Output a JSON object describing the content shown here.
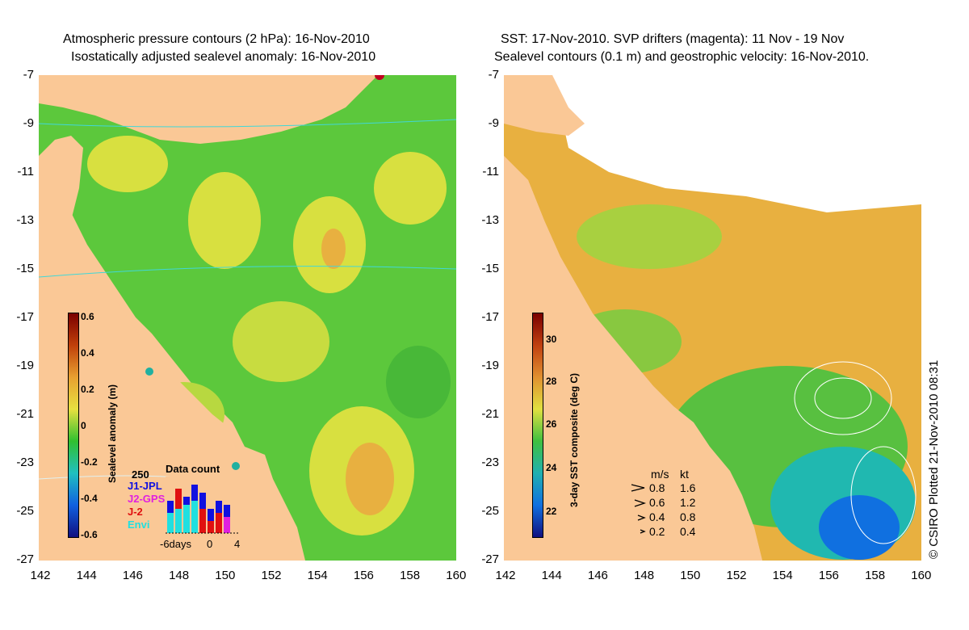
{
  "left_panel": {
    "title_line1": "Atmospheric pressure contours (2 hPa): 16-Nov-2010",
    "title_line2": "Isostatically adjusted sealevel anomaly: 16-Nov-2010",
    "colorbar": {
      "label": "Sealevel anomaly (m)",
      "ticks": [
        "0.6",
        "0.4",
        "0.2",
        "0",
        "-0.2",
        "-0.4",
        "-0.6"
      ],
      "colors": [
        "#7a0000",
        "#c0400a",
        "#e8a030",
        "#e8e040",
        "#30c030",
        "#20c0c0",
        "#1060e0",
        "#101080"
      ]
    },
    "data_count": {
      "title": "Data count",
      "max_label": "250",
      "series": [
        {
          "name": "J1-JPL",
          "color": "#1010e0"
        },
        {
          "name": "J2-GPS",
          "color": "#e020e0"
        },
        {
          "name": "J-2",
          "color": "#e01010"
        },
        {
          "name": "Envi",
          "color": "#20e0e0"
        }
      ],
      "x_labels": [
        "-6days",
        "0",
        "4"
      ]
    }
  },
  "right_panel": {
    "title_line1": "SST: 17-Nov-2010. SVP drifters (magenta): 11 Nov - 19 Nov",
    "title_line2": "Sealevel contours (0.1 m) and geostrophic velocity: 16-Nov-2010.",
    "colorbar": {
      "label": "3-day SST composite (deg C)",
      "ticks": [
        "30",
        "28",
        "26",
        "24",
        "22"
      ],
      "colors": [
        "#7a0000",
        "#c04010",
        "#e09030",
        "#e0e040",
        "#40c040",
        "#20b0b0",
        "#1070e0",
        "#101080"
      ]
    },
    "speed_legend": {
      "header_ms": "m/s",
      "header_kt": "kt",
      "rows": [
        {
          "ms": "0.8",
          "kt": "1.6"
        },
        {
          "ms": "0.6",
          "kt": "1.2"
        },
        {
          "ms": "0.4",
          "kt": "0.8"
        },
        {
          "ms": "0.2",
          "kt": "0.4"
        }
      ]
    }
  },
  "axes": {
    "y_ticks": [
      "-7",
      "-9",
      "-11",
      "-13",
      "-15",
      "-17",
      "-19",
      "-21",
      "-23",
      "-25",
      "-27"
    ],
    "x_ticks": [
      "142",
      "144",
      "146",
      "148",
      "150",
      "152",
      "154",
      "156",
      "158",
      "160"
    ]
  },
  "credit": "© CSIRO Plotted 21-Nov-2010 08:31",
  "colors": {
    "land": "#fac896",
    "ocean_green": "#58c838",
    "ocean_yellow": "#d8e040",
    "ocean_orange": "#e8b040",
    "coast_cyan": "#40d8d8"
  }
}
